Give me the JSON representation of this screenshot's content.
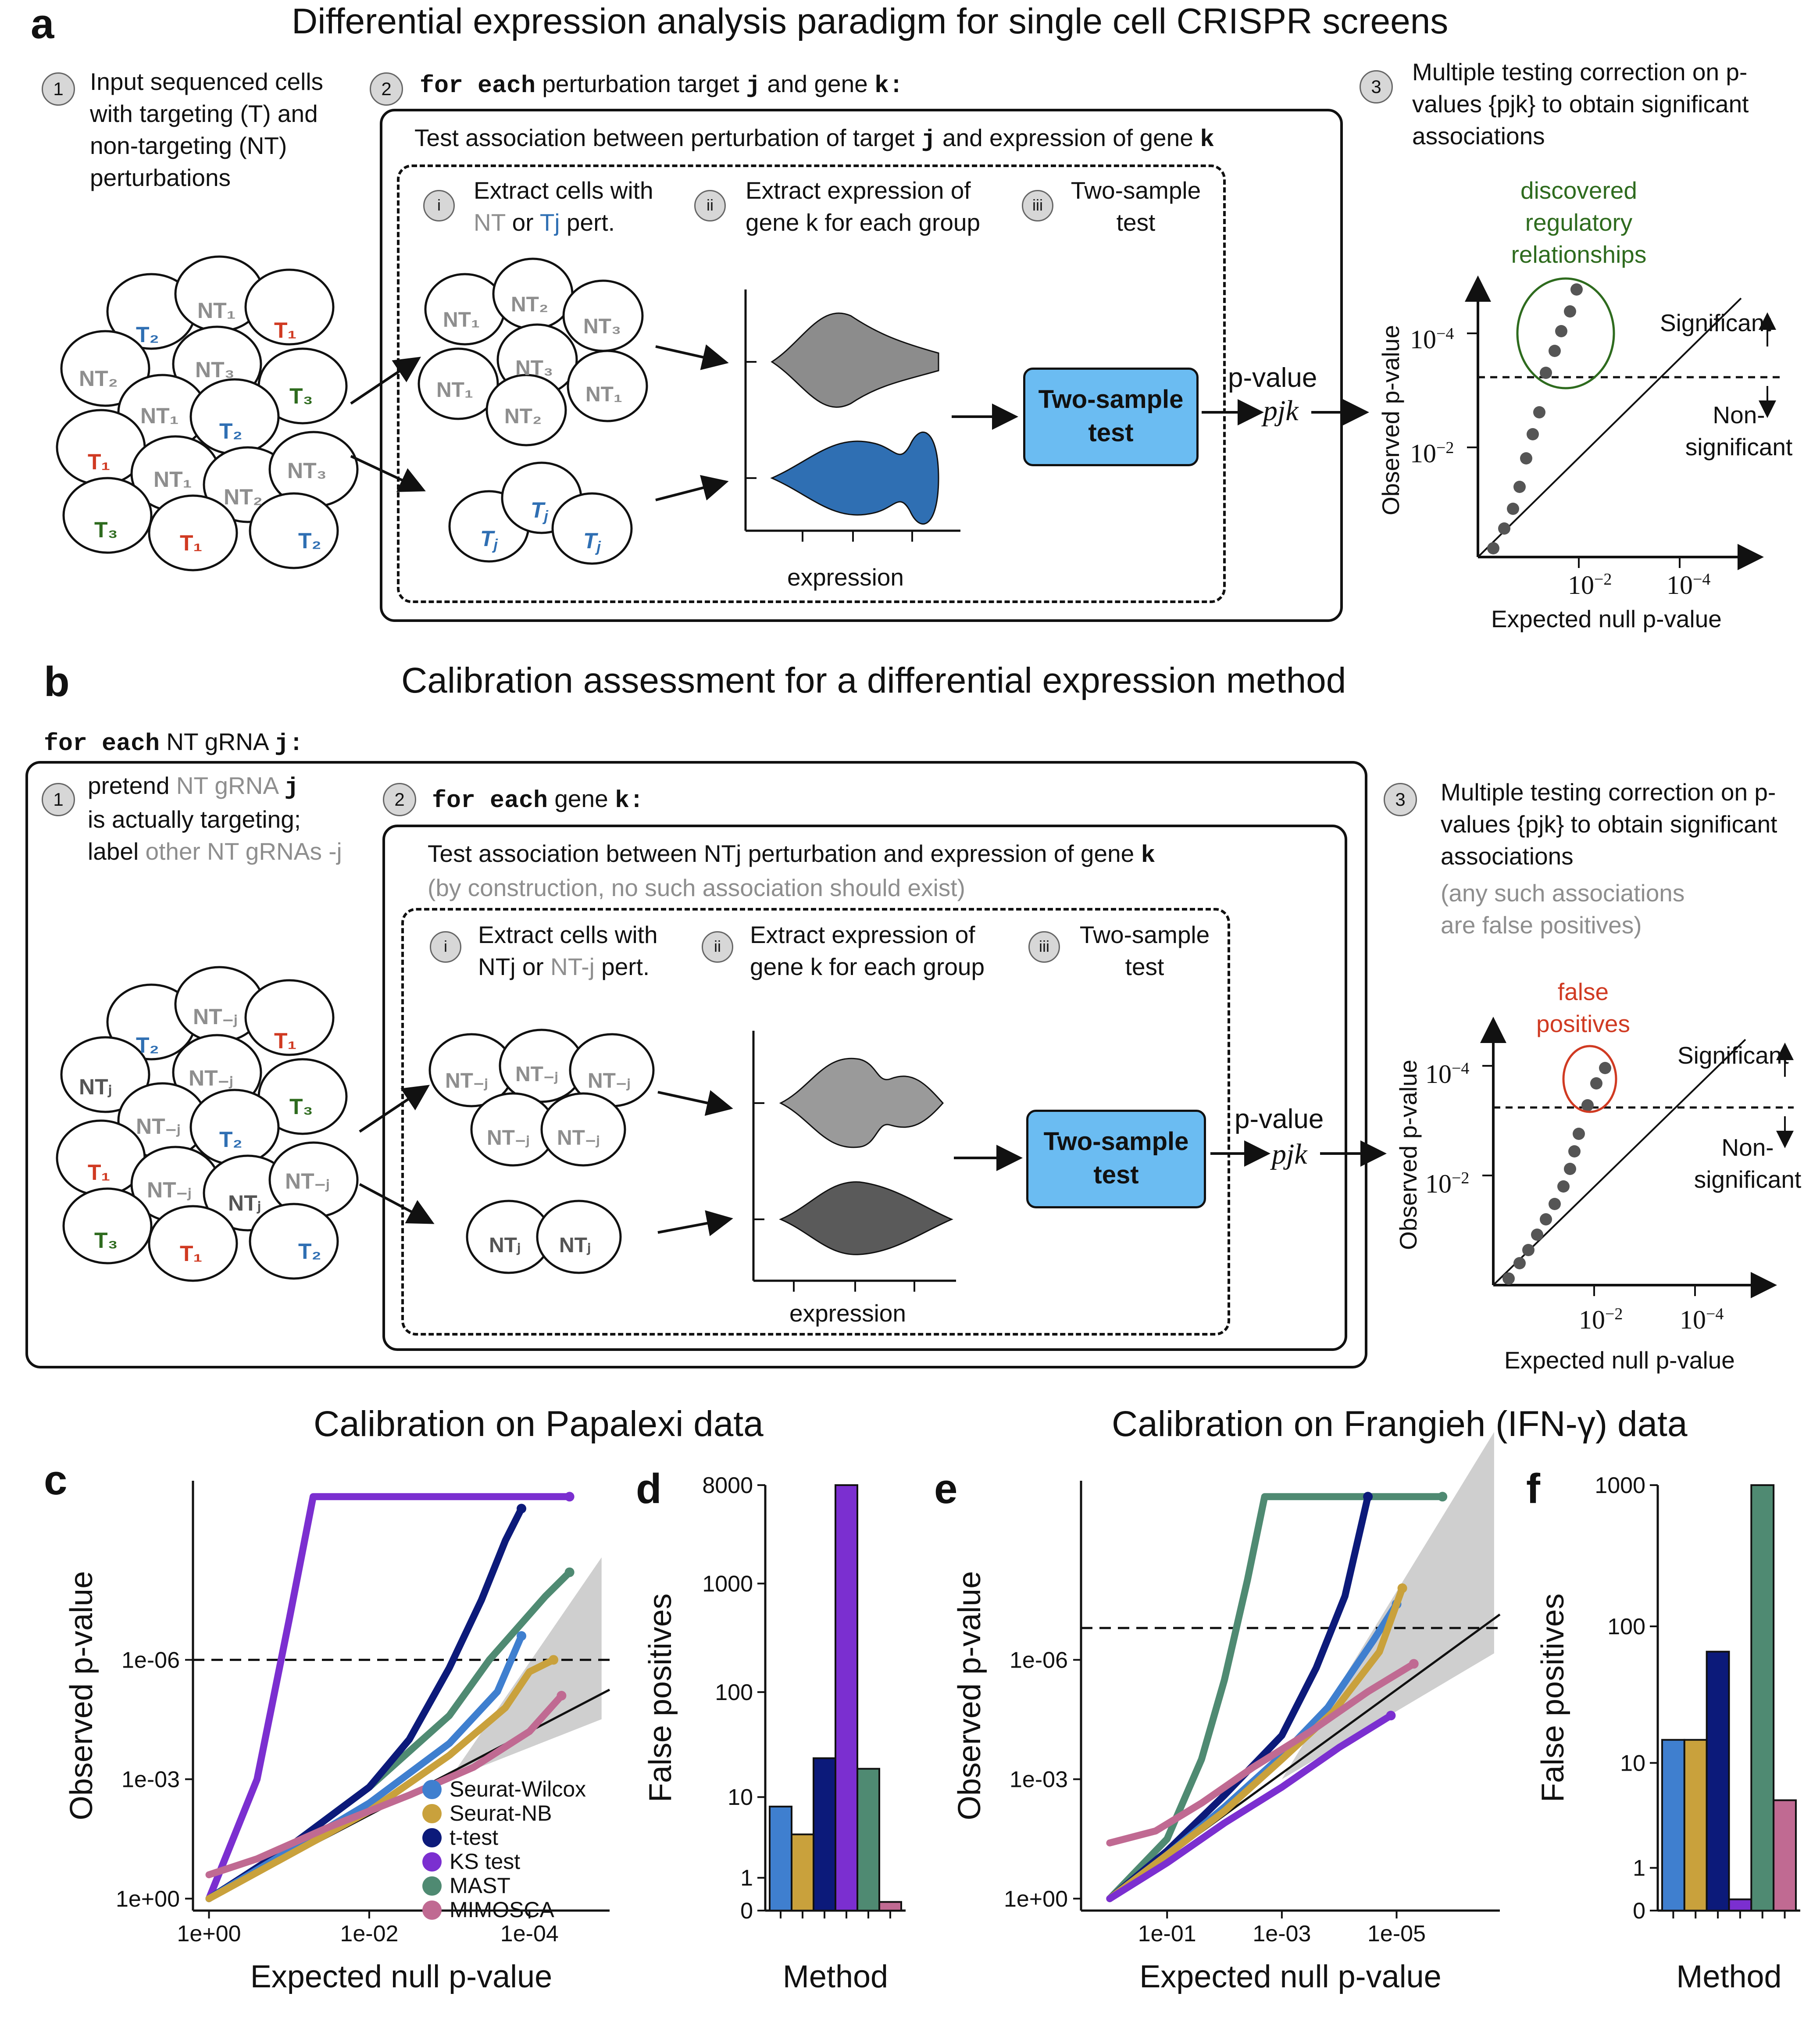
{
  "panel_a": {
    "letter": "a",
    "title": "Differential expression analysis paradigm for single cell CRISPR screens",
    "step1_num": "1",
    "step1_text": "Input sequenced cells with targeting (T) and non-targeting (NT) perturbations",
    "step2_num": "2",
    "step2_code1": "for each",
    "step2_text": "perturbation target",
    "step2_var1": "j",
    "step2_and": "and gene",
    "step2_var2": "k:",
    "box_title_pre": "Test association between perturbation of target",
    "box_title_j": "j",
    "box_title_mid": "and expression of gene",
    "box_title_k": "k",
    "sub_i_num": "i",
    "sub_i_text1": "Extract cells with",
    "sub_i_nt": "NT",
    "sub_i_or": "or",
    "sub_i_tj": "Tj",
    "sub_i_pert": "pert.",
    "sub_ii_num": "ii",
    "sub_ii_text": "Extract expression of gene k for each group",
    "sub_iii_num": "iii",
    "sub_iii_text": "Two-sample test",
    "expression_label": "expression",
    "test_box": "Two-sample test",
    "pvalue_label": "p-value",
    "pjk": "pjk",
    "step3_num": "3",
    "step3_text": "Multiple testing correction on p-values {pjk} to obtain significant associations",
    "discovered": "discovered regulatory relationships",
    "significant": "Significant",
    "nonsig": "Non- significant",
    "ylabel": "Observed p-value",
    "xlabel": "Expected null p-value",
    "tick_1e4": "10",
    "tick_1e2": "10",
    "exp_m4": "−4",
    "exp_m2": "−2"
  },
  "panel_b": {
    "letter": "b",
    "title": "Calibration assessment for a differential expression method",
    "outer_code": "for each",
    "outer_text": "NT gRNA",
    "outer_var": "j:",
    "step1_num": "1",
    "step1_text1": "pretend",
    "step1_nt": "NT gRNA",
    "step1_j": "j",
    "step1_text2": "is actually targeting;",
    "step1_text3": "label",
    "step1_other": "other NT gRNAs -j",
    "step2_num": "2",
    "step2_code": "for each",
    "step2_text": "gene",
    "step2_var": "k:",
    "box_title": "Test association between NTj perturbation and expression of gene",
    "box_title_k": "k",
    "box_subtitle": "(by construction, no such association should exist)",
    "sub_i_num": "i",
    "sub_i_text1": "Extract cells with",
    "sub_i_text2a": "NTj",
    "sub_i_text2b": "or",
    "sub_i_text2c": "NT-j",
    "sub_i_text2d": "pert.",
    "sub_ii_num": "ii",
    "sub_ii_text": "Extract expression of gene k for each group",
    "sub_iii_num": "iii",
    "sub_iii_text": "Two-sample test",
    "expression_label": "expression",
    "test_box": "Two-sample test",
    "pvalue_label": "p-value",
    "pjk": "pjk",
    "step3_num": "3",
    "step3_text": "Multiple testing correction on p-values {pjk} to obtain significant associations",
    "step3_gray": "(any such associations are false positives)",
    "false_pos": "false positives",
    "significant": "Significant",
    "nonsig": "Non- significant",
    "ylabel": "Observed p-value",
    "xlabel": "Expected null p-value"
  },
  "panel_c_title": "Calibration on Papalexi data",
  "panel_e_title": "Calibration on Frangieh (IFN-γ) data",
  "letters": {
    "c": "c",
    "d": "d",
    "e": "e",
    "f": "f"
  },
  "legend": [
    {
      "name": "Seurat-Wilcox",
      "color": "#3f7fcf"
    },
    {
      "name": "Seurat-NB",
      "color": "#c9a13c"
    },
    {
      "name": "t-test",
      "color": "#0c1a7a"
    },
    {
      "name": "KS test",
      "color": "#7b2fd0"
    },
    {
      "name": "MAST",
      "color": "#4f8a72"
    },
    {
      "name": "MIMOSCA",
      "color": "#c06a92"
    }
  ],
  "chart_data": [
    {
      "id": "c",
      "type": "scatter",
      "title": "Calibration on Papalexi data",
      "xlabel": "Expected null p-value",
      "ylabel": "Observed p-value",
      "x_ticks": [
        "1e+00",
        "1e-02",
        "1e-04"
      ],
      "y_ticks": [
        "1e+00",
        "1e-03",
        "1e-06"
      ],
      "xlim_neglog10": [
        -0.2,
        5.0
      ],
      "ylim_neglog10": [
        -0.3,
        10.5
      ],
      "threshold_neglog10": 6,
      "series": [
        {
          "name": "KS test",
          "points": [
            [
              0,
              0
            ],
            [
              0.6,
              3
            ],
            [
              1.0,
              7
            ],
            [
              1.3,
              10.1
            ],
            [
              4.5,
              10.1
            ]
          ]
        },
        {
          "name": "MAST",
          "points": [
            [
              0,
              0
            ],
            [
              1,
              1.3
            ],
            [
              2,
              2.8
            ],
            [
              3,
              4.6
            ],
            [
              3.5,
              6.0
            ],
            [
              4.2,
              7.6
            ],
            [
              4.5,
              8.2
            ]
          ]
        },
        {
          "name": "t-test",
          "points": [
            [
              0,
              0
            ],
            [
              1,
              1.3
            ],
            [
              2,
              2.8
            ],
            [
              2.5,
              4
            ],
            [
              3,
              5.8
            ],
            [
              3.4,
              7.5
            ],
            [
              3.7,
              9.0
            ],
            [
              3.9,
              9.8
            ]
          ]
        },
        {
          "name": "Seurat-Wilcox",
          "points": [
            [
              0,
              0
            ],
            [
              1,
              1.2
            ],
            [
              2,
              2.4
            ],
            [
              3,
              3.9
            ],
            [
              3.6,
              5.2
            ],
            [
              3.9,
              6.6
            ]
          ]
        },
        {
          "name": "Seurat-NB",
          "points": [
            [
              0,
              0
            ],
            [
              1,
              1.1
            ],
            [
              2,
              2.2
            ],
            [
              3,
              3.6
            ],
            [
              3.7,
              4.8
            ],
            [
              4.0,
              5.7
            ],
            [
              4.3,
              6.0
            ]
          ]
        },
        {
          "name": "MIMOSCA",
          "points": [
            [
              0,
              0.6
            ],
            [
              0.6,
              1.0
            ],
            [
              1.5,
              1.8
            ],
            [
              2.5,
              2.6
            ],
            [
              3.3,
              3.3
            ],
            [
              4.0,
              4.2
            ],
            [
              4.4,
              5.1
            ]
          ]
        }
      ]
    },
    {
      "id": "d",
      "type": "bar",
      "xlabel": "Method",
      "ylabel": "False positives",
      "y_ticks": [
        "0",
        "1",
        "10",
        "100",
        "1000",
        "8000"
      ],
      "categories": [
        "Seurat-Wilcox",
        "Seurat-NB",
        "t-test",
        "KS test",
        "MAST",
        "MIMOSCA"
      ],
      "values": [
        8,
        4,
        24,
        8000,
        19,
        0.2
      ]
    },
    {
      "id": "e",
      "type": "scatter",
      "title": "Calibration on Frangieh (IFN-γ) data",
      "xlabel": "Expected null p-value",
      "ylabel": "Observed p-value",
      "x_ticks": [
        "1e-01",
        "1e-03",
        "1e-05"
      ],
      "y_ticks": [
        "1e+00",
        "1e-03",
        "1e-06"
      ],
      "xlim_neglog10": [
        -0.5,
        6.8
      ],
      "ylim_neglog10": [
        -0.3,
        10.5
      ],
      "threshold_neglog10": 6.8,
      "series": [
        {
          "name": "MAST",
          "points": [
            [
              0,
              0
            ],
            [
              1,
              1.5
            ],
            [
              1.6,
              3.5
            ],
            [
              2.0,
              5.5
            ],
            [
              2.4,
              8.0
            ],
            [
              2.7,
              10.1
            ],
            [
              5.8,
              10.1
            ]
          ]
        },
        {
          "name": "t-test",
          "points": [
            [
              0,
              0
            ],
            [
              1,
              1.2
            ],
            [
              2,
              2.6
            ],
            [
              3,
              4.1
            ],
            [
              3.6,
              5.8
            ],
            [
              4.1,
              7.6
            ],
            [
              4.5,
              10.1
            ]
          ]
        },
        {
          "name": "Seurat-Wilcox",
          "points": [
            [
              0,
              0
            ],
            [
              1,
              1.1
            ],
            [
              2,
              2.3
            ],
            [
              3,
              3.6
            ],
            [
              3.8,
              4.8
            ],
            [
              4.6,
              6.5
            ],
            [
              5.0,
              7.4
            ]
          ]
        },
        {
          "name": "Seurat-NB",
          "points": [
            [
              0,
              0
            ],
            [
              1,
              1.1
            ],
            [
              2,
              2.2
            ],
            [
              3,
              3.5
            ],
            [
              3.9,
              4.7
            ],
            [
              4.7,
              6.2
            ],
            [
              5.1,
              7.8
            ]
          ]
        },
        {
          "name": "KS test",
          "points": [
            [
              0,
              0
            ],
            [
              1,
              0.9
            ],
            [
              2,
              1.9
            ],
            [
              3,
              2.8
            ],
            [
              4,
              3.8
            ],
            [
              4.9,
              4.6
            ]
          ]
        },
        {
          "name": "MIMOSCA",
          "points": [
            [
              0,
              1.4
            ],
            [
              0.8,
              1.7
            ],
            [
              1.6,
              2.4
            ],
            [
              2.5,
              3.3
            ],
            [
              3.5,
              4.2
            ],
            [
              4.5,
              5.2
            ],
            [
              5.3,
              5.9
            ]
          ]
        }
      ]
    },
    {
      "id": "f",
      "type": "bar",
      "xlabel": "Method",
      "ylabel": "False positives",
      "y_ticks": [
        "0",
        "1",
        "10",
        "100",
        "1000"
      ],
      "categories": [
        "Seurat-Wilcox",
        "Seurat-NB",
        "t-test",
        "KS test",
        "MAST",
        "MIMOSCA"
      ],
      "values": [
        15,
        15,
        66,
        0.2,
        2000,
        5
      ]
    }
  ]
}
